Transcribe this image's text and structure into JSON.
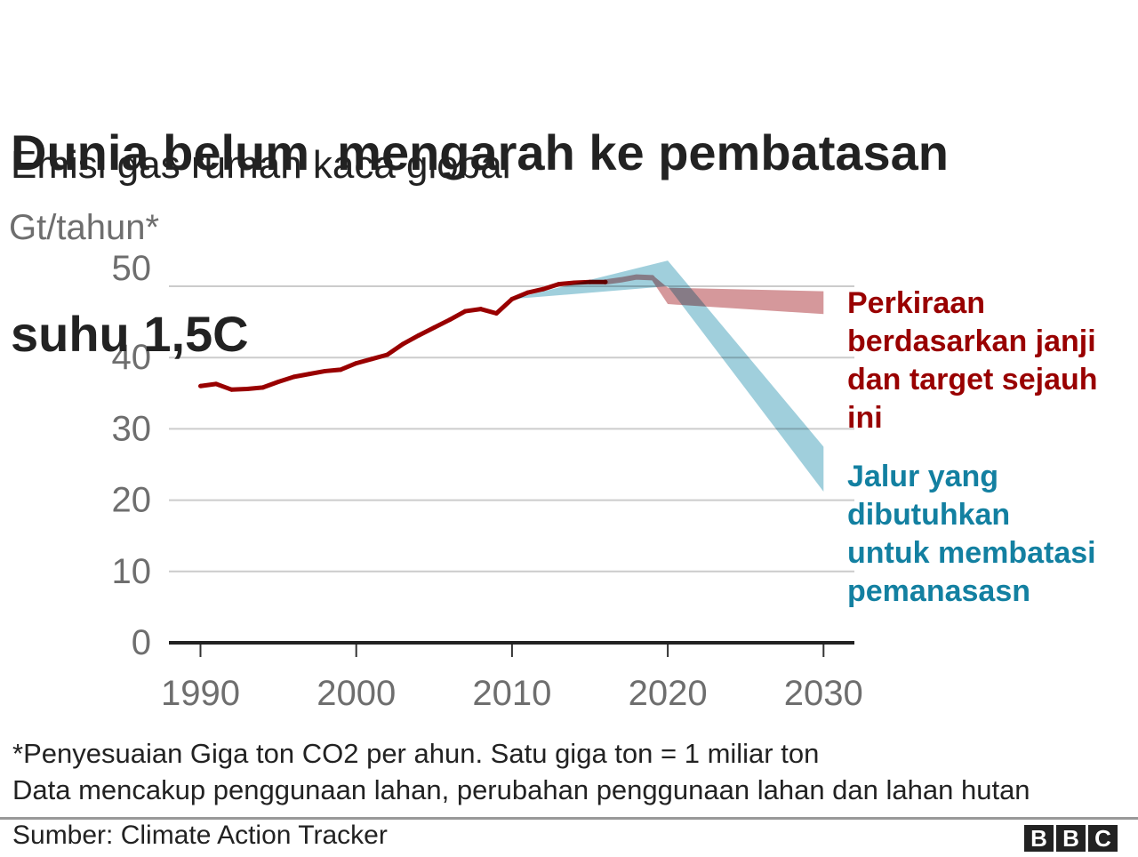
{
  "chart_data": {
    "type": "line",
    "title_lines": [
      "Dunia belum  mengarah ke pembatasan",
      "suhu 1,5C"
    ],
    "subtitle": "Emisi gas rumah kaca global",
    "ylabel": "Gt/tahun*",
    "xlabel": "",
    "xlim": [
      1990,
      2030
    ],
    "ylim": [
      0,
      50
    ],
    "grid": "horizontal",
    "x_ticks": [
      1990,
      2000,
      2010,
      2020,
      2030
    ],
    "x_tick_labels": [
      "1990",
      "2000",
      "2010",
      "2020",
      "2030"
    ],
    "y_ticks": [
      0,
      10,
      20,
      30,
      40,
      50
    ],
    "y_tick_labels": [
      "0",
      "10",
      "20",
      "30",
      "40",
      "50"
    ],
    "legend_placement": "right",
    "series": [
      {
        "id": "historical",
        "kind": "line",
        "x": [
          1990,
          1991,
          1992,
          1993,
          1994,
          1995,
          1996,
          1997,
          1998,
          1999,
          2000,
          2001,
          2002,
          2003,
          2004,
          2005,
          2006,
          2007,
          2008,
          2009,
          2010,
          2011,
          2012,
          2013,
          2014,
          2015,
          2016
        ],
        "values": [
          36.0,
          36.3,
          35.5,
          35.6,
          35.8,
          36.6,
          37.3,
          37.7,
          38.1,
          38.3,
          39.2,
          39.8,
          40.4,
          41.9,
          43.1,
          44.2,
          45.3,
          46.5,
          46.8,
          46.2,
          48.2,
          49.1,
          49.6,
          50.3,
          50.5,
          50.6,
          50.6
        ]
      },
      {
        "id": "projection_lead",
        "kind": "line",
        "x": [
          2016,
          2017,
          2018,
          2019
        ],
        "values": [
          50.6,
          50.9,
          51.3,
          51.2
        ]
      },
      {
        "id": "projection",
        "kind": "band",
        "name": "Perkiraan berdasarkan janji dan target sejauh ini",
        "x": [
          2019,
          2020,
          2030
        ],
        "lower": [
          50.8,
          47.5,
          46.1
        ],
        "upper": [
          51.6,
          49.8,
          49.3
        ]
      },
      {
        "id": "pathway",
        "kind": "band",
        "name": "Jalur yang dibutuhkan untuk membatasi pemanasasn",
        "x": [
          2010,
          2020,
          2030
        ],
        "lower": [
          48.2,
          50.0,
          21.2
        ],
        "upper": [
          48.2,
          53.6,
          27.5
        ]
      }
    ]
  },
  "legend": {
    "projection": {
      "lines": [
        "Perkiraan",
        "berdasarkan janji",
        "dan target sejauh",
        "ini"
      ]
    },
    "pathway": {
      "lines": [
        "Jalur yang",
        "dibutuhkan",
        "untuk membatasi",
        "pemanasasn"
      ]
    }
  },
  "footer": {
    "note_lines": [
      "*Penyesuaian Giga ton CO2 per ahun. Satu giga ton = 1 miliar ton",
      "Data mencakup penggunaan lahan, perubahan penggunaan lahan dan lahan hutan"
    ],
    "source": "Sumber: Climate Action Tracker",
    "logo_letters": [
      "B",
      "B",
      "C"
    ]
  },
  "colors": {
    "historical": "#990000",
    "projection": "#d5989b",
    "pathway": "#a0cfdc",
    "projection_text": "#990000",
    "pathway_text": "#1380a1",
    "grid": "#cccccc",
    "axis": "#222222",
    "tick": "#333333",
    "axis_text": "#6e6e6e"
  }
}
